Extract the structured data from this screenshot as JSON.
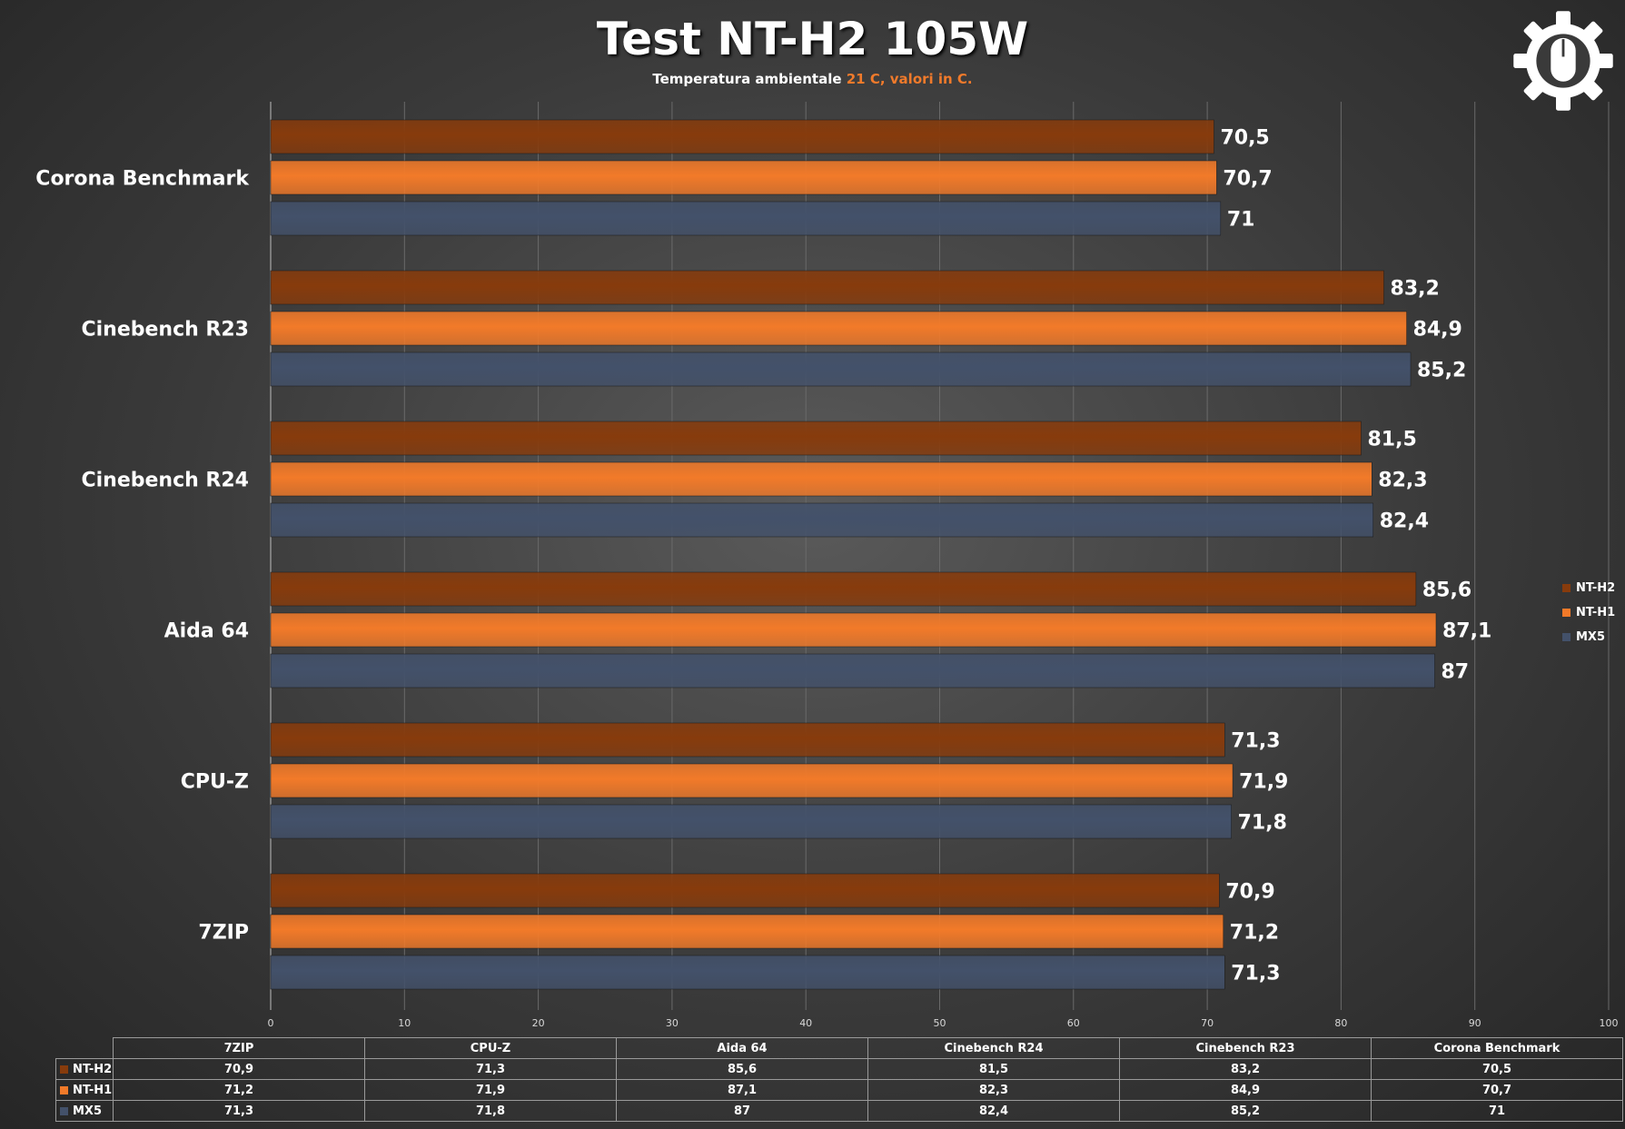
{
  "title": "Test NT-H2 105W",
  "subtitle_prefix": "Temperatura ambientale ",
  "subtitle_accent": "21 C, valori in C.",
  "logo_icon": "gear-mouse-icon",
  "colors": {
    "NT-H2": "#873b0c",
    "NT-H1": "#f27a29",
    "MX5": "#43516a",
    "accent": "#f07a2b"
  },
  "chart_data": {
    "type": "bar",
    "orientation": "horizontal",
    "title": "Test NT-H2 105W",
    "subtitle": "Temperatura ambientale 21 C, valori in C.",
    "categories": [
      "7ZIP",
      "CPU-Z",
      "Aida 64",
      "Cinebench R24",
      "Cinebench R23",
      "Corona Benchmark"
    ],
    "series": [
      {
        "name": "NT-H2",
        "values": [
          70.9,
          71.3,
          85.6,
          81.5,
          83.2,
          70.5
        ]
      },
      {
        "name": "NT-H1",
        "values": [
          71.2,
          71.9,
          87.1,
          82.3,
          84.9,
          70.7
        ]
      },
      {
        "name": "MX5",
        "values": [
          71.3,
          71.8,
          87,
          82.4,
          85.2,
          71
        ]
      }
    ],
    "xlim": [
      0,
      100
    ],
    "xticks": [
      "0",
      "10",
      "20",
      "30",
      "40",
      "50",
      "60",
      "70",
      "80",
      "90",
      "100"
    ],
    "value_labels": {
      "NT-H2": [
        "70,9",
        "71,3",
        "85,6",
        "81,5",
        "83,2",
        "70,5"
      ],
      "NT-H1": [
        "71,2",
        "71,9",
        "87,1",
        "82,3",
        "84,9",
        "70,7"
      ],
      "MX5": [
        "71,3",
        "71,8",
        "87",
        "82,4",
        "85,2",
        "71"
      ]
    },
    "grid": true,
    "legend_position": "right",
    "data_table": true
  },
  "legend": [
    "NT-H2",
    "NT-H1",
    "MX5"
  ],
  "table": {
    "headers": [
      "7ZIP",
      "CPU-Z",
      "Aida 64",
      "Cinebench R24",
      "Cinebench R23",
      "Corona Benchmark"
    ],
    "rows": [
      {
        "name": "NT-H2",
        "cells": [
          "70,9",
          "71,3",
          "85,6",
          "81,5",
          "83,2",
          "70,5"
        ]
      },
      {
        "name": "NT-H1",
        "cells": [
          "71,2",
          "71,9",
          "87,1",
          "82,3",
          "84,9",
          "70,7"
        ]
      },
      {
        "name": "MX5",
        "cells": [
          "71,3",
          "71,8",
          "87",
          "82,4",
          "85,2",
          "71"
        ]
      }
    ]
  }
}
